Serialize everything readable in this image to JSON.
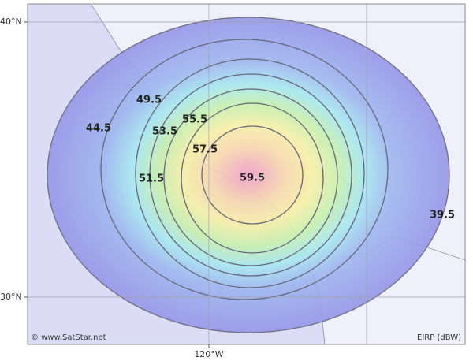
{
  "map": {
    "lat_labels": [
      "40°N",
      "30°N"
    ],
    "lon_labels": [
      "120°W"
    ],
    "contours": [
      {
        "label": 59.5
      },
      {
        "label": 57.5
      },
      {
        "label": 55.5
      },
      {
        "label": 53.5
      },
      {
        "label": 51.5
      },
      {
        "label": 49.5
      },
      {
        "label": 44.5
      },
      {
        "label": 39.5
      }
    ],
    "credit": "© www.SatStar.net",
    "legend": "EIRP (dBW)"
  }
}
